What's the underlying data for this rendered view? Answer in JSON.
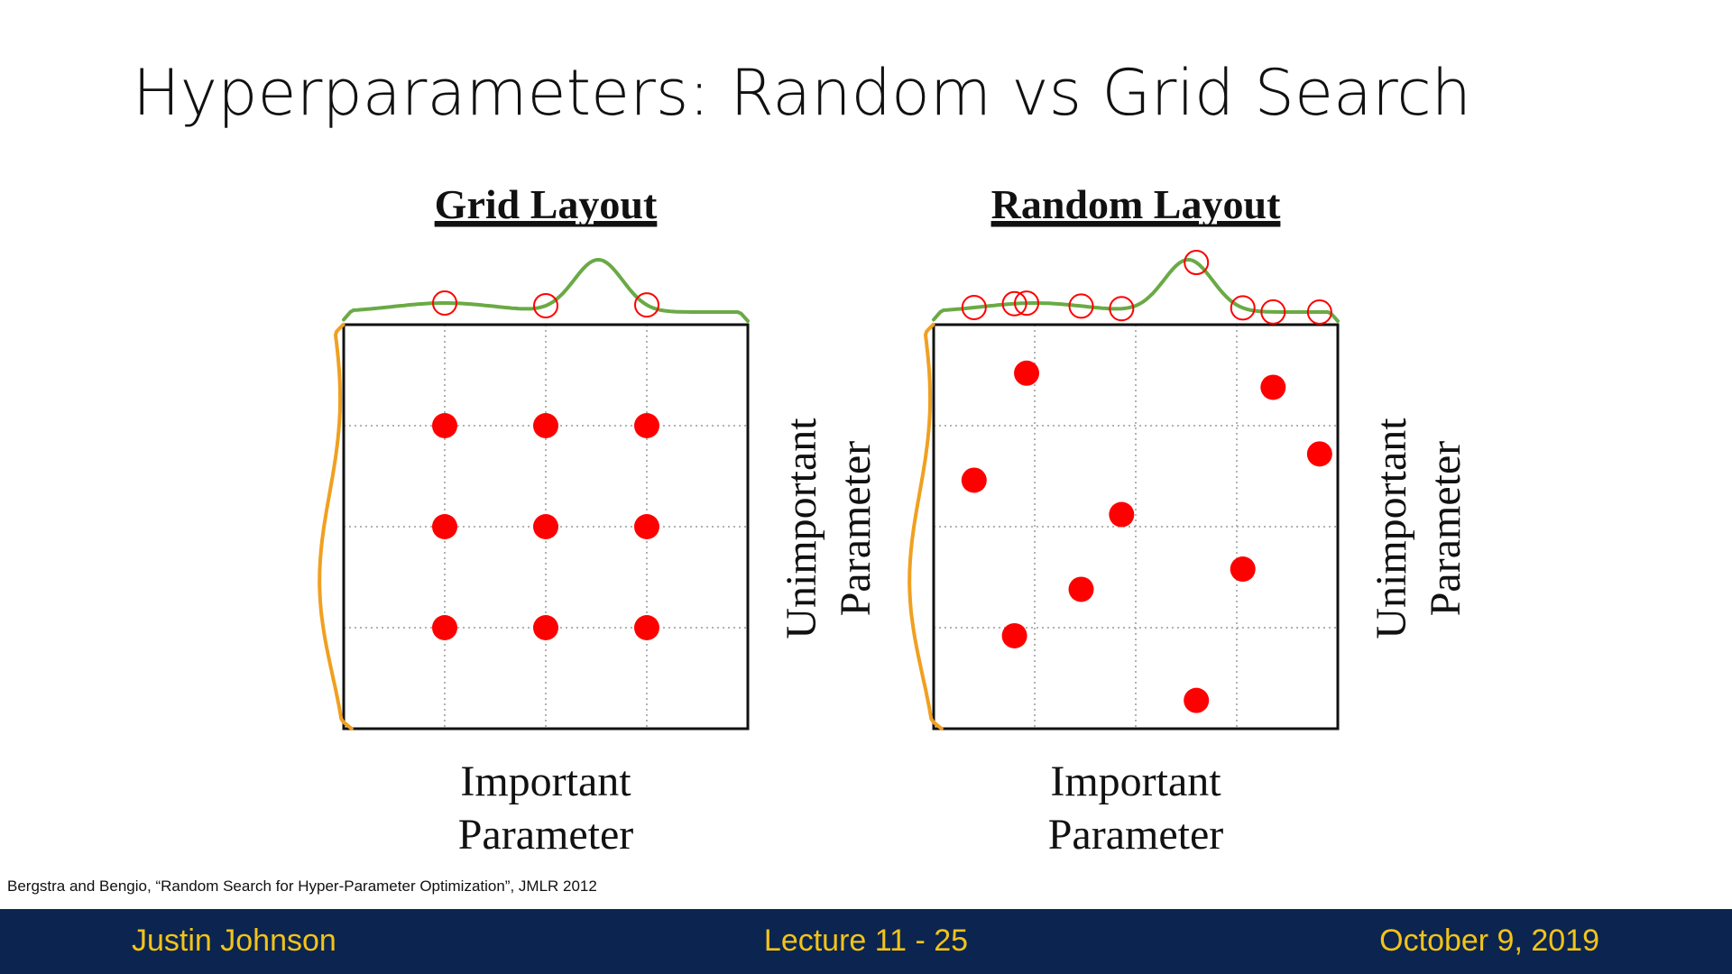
{
  "slide": {
    "title": "Hyperparameters: Random vs Grid Search",
    "citation": "Bergstra and Bengio, “Random Search for Hyper-Parameter Optimization”, JMLR 2012"
  },
  "footer": {
    "author": "Justin Johnson",
    "lecture": "Lecture 11 - 25",
    "date": "October 9, 2019"
  },
  "colors": {
    "points": "#ff0000",
    "important_curve": "#6aaa45",
    "unimportant_curve": "#f0a020",
    "grid_lines": "#999999",
    "footer_bg": "#0b2550",
    "footer_text": "#f3c318"
  },
  "panels": [
    {
      "title": "Grid Layout",
      "x_label_line1": "Important",
      "x_label_line2": "Parameter",
      "y_label_line1": "Unimportant",
      "y_label_line2": "Parameter",
      "points": [
        [
          0.25,
          0.25
        ],
        [
          0.5,
          0.25
        ],
        [
          0.75,
          0.25
        ],
        [
          0.25,
          0.5
        ],
        [
          0.5,
          0.5
        ],
        [
          0.75,
          0.5
        ],
        [
          0.25,
          0.75
        ],
        [
          0.5,
          0.75
        ],
        [
          0.75,
          0.75
        ]
      ]
    },
    {
      "title": "Random Layout",
      "x_label_line1": "Important",
      "x_label_line2": "Parameter",
      "y_label_line1": "Unimportant",
      "y_label_line2": "Parameter",
      "points": [
        [
          0.23,
          0.12
        ],
        [
          0.84,
          0.155
        ],
        [
          0.955,
          0.32
        ],
        [
          0.1,
          0.385
        ],
        [
          0.465,
          0.47
        ],
        [
          0.765,
          0.605
        ],
        [
          0.365,
          0.655
        ],
        [
          0.2,
          0.77
        ],
        [
          0.65,
          0.93
        ]
      ]
    }
  ]
}
